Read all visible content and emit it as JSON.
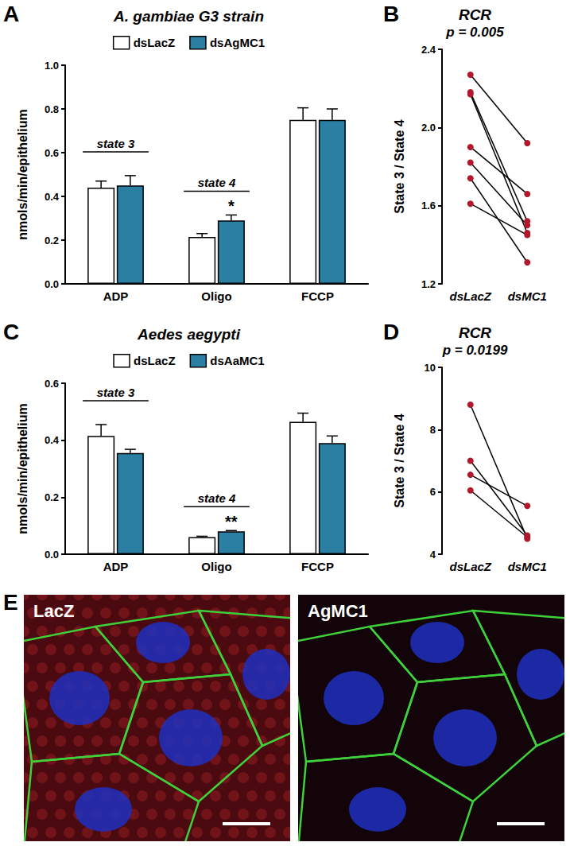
{
  "chart_data": [
    {
      "panel": "A",
      "type": "bar",
      "title": "A. gambiae G3 strain",
      "y_label": "nmols/min/epithelium",
      "categories": [
        "ADP",
        "Oligo",
        "FCCP"
      ],
      "series": [
        {
          "name": "dsLacZ",
          "color": "#ffffff",
          "values": [
            0.44,
            0.215,
            0.75
          ],
          "errors": [
            0.03,
            0.015,
            0.055
          ]
        },
        {
          "name": "dsAgMC1",
          "color": "#2b7fa3",
          "values": [
            0.45,
            0.29,
            0.75
          ],
          "errors": [
            0.045,
            0.025,
            0.05
          ]
        }
      ],
      "group_labels": [
        {
          "text": "state 3",
          "category": "ADP"
        },
        {
          "text": "state 4",
          "category": "Oligo"
        }
      ],
      "annotations": [
        {
          "text": "*",
          "category": "Oligo",
          "series": "dsAgMC1"
        }
      ],
      "ylim": [
        0,
        1.0
      ],
      "yticks": [
        {
          "value": 0,
          "label": "0.0"
        },
        0.2,
        0.4,
        0.6,
        0.8,
        {
          "value": 1.0,
          "label": "1.0"
        }
      ],
      "legend": "top",
      "grid": false
    },
    {
      "panel": "B",
      "type": "line",
      "title": "RCR",
      "subtitle": "p = 0.005",
      "y_label": "State 3 / State 4",
      "categories": [
        "dsLacZ",
        "dsMC1"
      ],
      "series": [
        {
          "values": [
            2.27,
            1.92
          ]
        },
        {
          "values": [
            2.18,
            1.52
          ]
        },
        {
          "values": [
            2.17,
            1.46
          ]
        },
        {
          "values": [
            1.9,
            1.66
          ]
        },
        {
          "values": [
            1.82,
            1.5
          ]
        },
        {
          "values": [
            1.74,
            1.31
          ]
        },
        {
          "values": [
            1.61,
            1.45
          ]
        }
      ],
      "color": "#b2182b",
      "marker": "circle",
      "ylim": [
        1.2,
        2.4
      ],
      "yticks": [
        1.2,
        1.6,
        {
          "value": 2.0,
          "label": "2.0"
        },
        2.4
      ],
      "grid": false
    },
    {
      "panel": "C",
      "type": "bar",
      "title": "Aedes aegypti",
      "y_label": "nmols/min/epithelium",
      "categories": [
        "ADP",
        "Oligo",
        "FCCP"
      ],
      "series": [
        {
          "name": "dsLacZ",
          "color": "#ffffff",
          "values": [
            0.415,
            0.06,
            0.465
          ],
          "errors": [
            0.04,
            0.003,
            0.03
          ]
        },
        {
          "name": "dsAaMC1",
          "color": "#2b7fa3",
          "values": [
            0.355,
            0.08,
            0.39
          ],
          "errors": [
            0.013,
            0.003,
            0.025
          ]
        }
      ],
      "group_labels": [
        {
          "text": "state 3",
          "category": "ADP"
        },
        {
          "text": "state 4",
          "category": "Oligo"
        }
      ],
      "annotations": [
        {
          "text": "**",
          "category": "Oligo",
          "series": "dsAaMC1"
        }
      ],
      "ylim": [
        0,
        0.6
      ],
      "yticks": [
        {
          "value": 0,
          "label": "0.0"
        },
        0.2,
        0.4,
        0.6
      ],
      "legend": "top",
      "grid": false
    },
    {
      "panel": "D",
      "type": "line",
      "title": "RCR",
      "subtitle": "p = 0.0199",
      "y_label": "State 3 / State 4",
      "categories": [
        "dsLacZ",
        "dsMC1"
      ],
      "series": [
        {
          "values": [
            8.8,
            4.5
          ]
        },
        {
          "values": [
            7.0,
            4.6
          ]
        },
        {
          "values": [
            6.55,
            5.55
          ]
        },
        {
          "values": [
            6.05,
            4.55
          ]
        }
      ],
      "color": "#b2182b",
      "marker": "circle",
      "ylim": [
        4,
        10
      ],
      "yticks": [
        4,
        6,
        8,
        10
      ],
      "grid": false
    }
  ],
  "image_panel": {
    "panel": "E",
    "images": [
      {
        "label": "LacZ"
      },
      {
        "label": "AgMC1"
      }
    ]
  }
}
